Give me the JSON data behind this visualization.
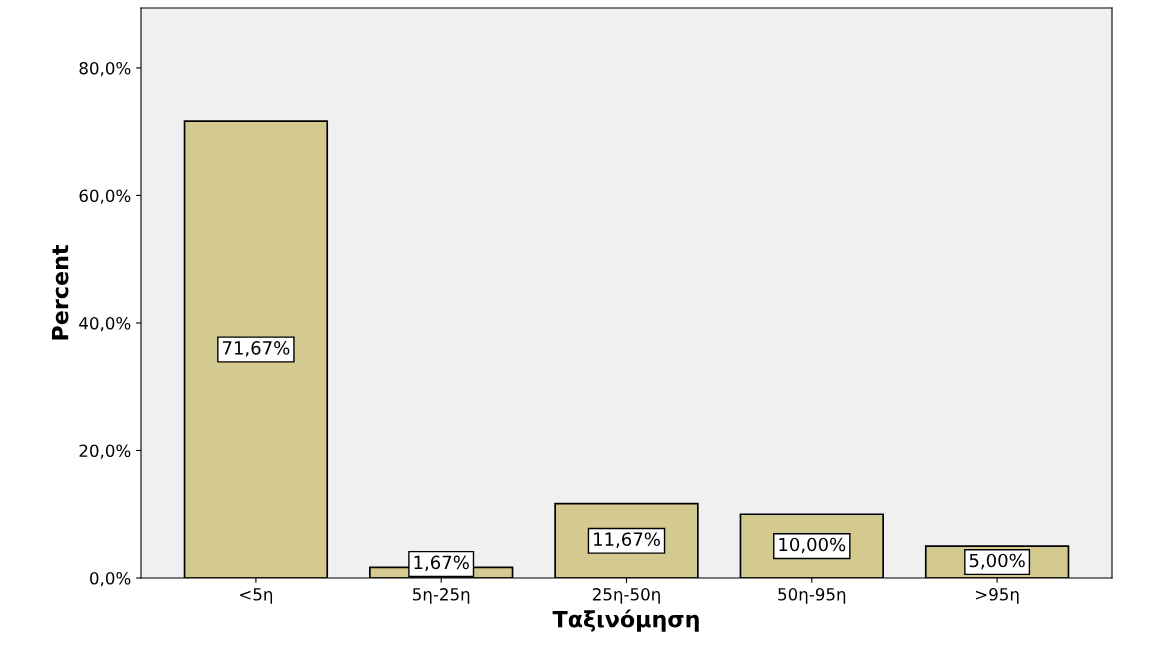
{
  "chart_data": {
    "type": "bar",
    "xlabel": "Ταξινόμηση",
    "ylabel": "Percent",
    "categories": [
      "<5η",
      "5η-25η",
      "25η-50η",
      "50η-95η",
      ">95η"
    ],
    "values": [
      71.67,
      1.67,
      11.67,
      10.0,
      5.0
    ],
    "value_labels": [
      "71,67%",
      "1,67%",
      "11,67%",
      "10,00%",
      "5,00%"
    ],
    "color": "#d4c98f",
    "ylim": [
      0,
      89.4
    ],
    "yticks": [
      {
        "value": 0,
        "label": "0,0%"
      },
      {
        "value": 20,
        "label": "20,0%"
      },
      {
        "value": 40,
        "label": "40,0%"
      },
      {
        "value": 60,
        "label": "60,0%"
      },
      {
        "value": 80,
        "label": "80,0%"
      }
    ],
    "grid": false,
    "legend": false
  }
}
